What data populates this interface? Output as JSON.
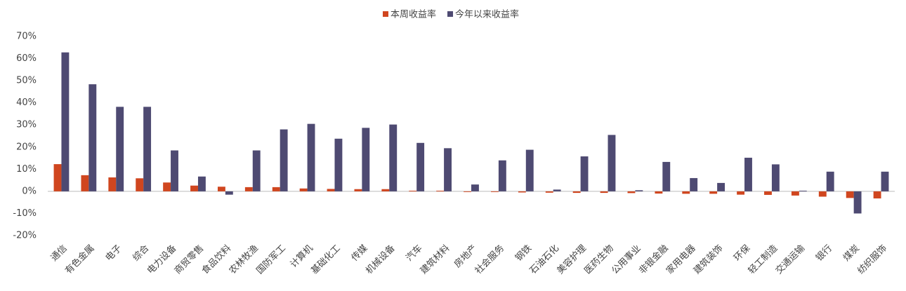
{
  "chart_data": {
    "type": "bar",
    "categories": [
      "通信",
      "有色金属",
      "电子",
      "综合",
      "电力设备",
      "商贸零售",
      "食品饮料",
      "农林牧渔",
      "国防军工",
      "计算机",
      "基础化工",
      "传媒",
      "机械设备",
      "汽车",
      "建筑材料",
      "房地产",
      "社会服务",
      "钢铁",
      "石油石化",
      "美容护理",
      "医药生物",
      "公用事业",
      "非银金融",
      "家用电器",
      "建筑装饰",
      "环保",
      "轻工制造",
      "交通运输",
      "银行",
      "煤炭",
      "纺织服饰"
    ],
    "series": [
      {
        "name": "本周收益率",
        "color": "#d0461f",
        "values": [
          12.3,
          7.3,
          6.3,
          5.9,
          4.0,
          2.6,
          2.1,
          1.9,
          1.9,
          1.3,
          1.1,
          1.0,
          1.0,
          0.3,
          0.3,
          -0.3,
          -0.3,
          -0.5,
          -0.6,
          -0.7,
          -0.7,
          -0.8,
          -1.0,
          -1.1,
          -1.1,
          -1.5,
          -1.6,
          -1.9,
          -2.4,
          -3.0,
          -3.2
        ]
      },
      {
        "name": "今年以来收益率",
        "color": "#4e4a72",
        "values": [
          62.8,
          48.4,
          38.2,
          38.2,
          18.5,
          6.7,
          -1.5,
          18.5,
          28.0,
          30.5,
          23.8,
          28.7,
          30.2,
          21.9,
          19.5,
          3.1,
          14.0,
          18.8,
          0.8,
          15.8,
          25.5,
          0.5,
          13.3,
          6.0,
          3.8,
          15.2,
          12.2,
          0.3,
          8.9,
          -10.0,
          8.9
        ]
      }
    ],
    "ylim": [
      -20,
      70
    ],
    "yticks": [
      {
        "value": -20,
        "label": "-20%"
      },
      {
        "value": -10,
        "label": "-10%"
      },
      {
        "value": 0,
        "label": "0%"
      },
      {
        "value": 10,
        "label": "10%"
      },
      {
        "value": 20,
        "label": "20%"
      },
      {
        "value": 30,
        "label": "30%"
      },
      {
        "value": 40,
        "label": "40%"
      },
      {
        "value": 50,
        "label": "50%"
      },
      {
        "value": 60,
        "label": "60%"
      },
      {
        "value": 70,
        "label": "70%"
      }
    ],
    "grid": false,
    "legend": "top"
  }
}
